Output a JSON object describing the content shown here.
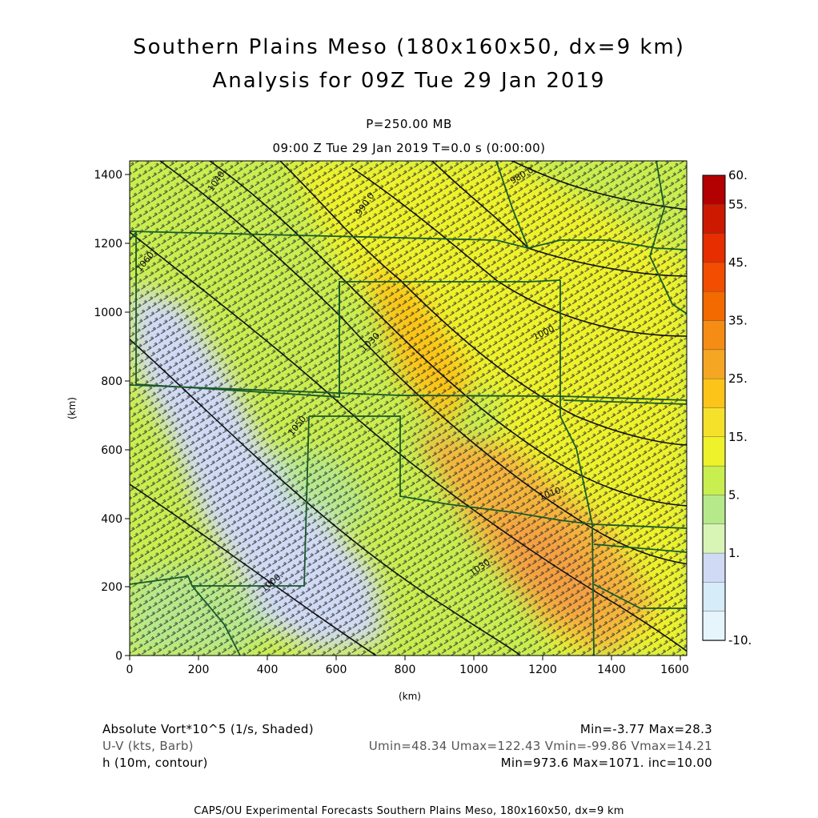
{
  "header": {
    "title_line1": "Southern Plains Meso (180x160x50, dx=9 km)",
    "title_line2": "Analysis for 09Z Tue 29 Jan 2019",
    "level": "P=250.00 MB",
    "time": "09:00 Z Tue 29 Jan 2019    T=0.0 s (0:00:00)"
  },
  "axes": {
    "x_label": "(km)",
    "y_label": "(km)",
    "x_ticks": [
      "0",
      "200",
      "400",
      "600",
      "800",
      "1000",
      "1200",
      "1400",
      "1600"
    ],
    "y_ticks": [
      "0",
      "200",
      "400",
      "600",
      "800",
      "1000",
      "1200",
      "1400"
    ]
  },
  "colorbar": {
    "labels": [
      "60.",
      "55.",
      "45.",
      "35.",
      "25.",
      "15.",
      "5.",
      "1.",
      "-10."
    ],
    "colors": [
      "#b30000",
      "#cc1a00",
      "#e62e00",
      "#f24d00",
      "#f26a00",
      "#f58c14",
      "#f5a623",
      "#fcc419",
      "#f5e12a",
      "#eef22a",
      "#c8ee4f",
      "#b6e98a",
      "#d8f5b6",
      "#d0daf5",
      "#d6ecf8",
      "#e6f5fb"
    ]
  },
  "contour_labels": [
    "980.0",
    "980.0",
    "990.0",
    "1000.",
    "1000.",
    "1010.",
    "1030.",
    "1030.",
    "1040.",
    "1050.",
    "1060."
  ],
  "footer": {
    "field1_name": "Absolute Vort*10^5 (1/s, Shaded)",
    "field1_stats": "Min=-3.77 Max=28.3",
    "field2_name": "U-V (kts, Barb)",
    "field2_stats": "Umin=48.34 Umax=122.43 Vmin=-99.86 Vmax=14.21",
    "field3_name": "h (10m, contour)",
    "field3_stats": "Min=973.6 Max=1071. inc=10.00",
    "caption": "CAPS/OU Experimental Forecasts  Southern Plains Meso, 180x160x50, dx=9 km"
  },
  "chart_data": {
    "type": "heatmap",
    "title": "Southern Plains Meso (180x160x50, dx=9 km)",
    "subtitle": "Analysis for 09Z Tue 29 Jan 2019",
    "xlabel": "(km)",
    "ylabel": "(km)",
    "xlim": [
      0,
      1620
    ],
    "ylim": [
      0,
      1440
    ],
    "colorbar_levels": [
      -10,
      1,
      5,
      15,
      25,
      35,
      45,
      55,
      60
    ],
    "shaded_field": "Absolute Vort*10^5 (1/s, Shaded)",
    "shaded_min": -3.77,
    "shaded_max": 28.3,
    "contour_field": "h (10m, contour)",
    "contour_min": 973.6,
    "contour_max": 1071,
    "contour_inc": 10.0,
    "barb_field": "U-V (kts, Barb)",
    "umin": 48.34,
    "umax": 122.43,
    "vmin": -99.86,
    "vmax": 14.21
  }
}
